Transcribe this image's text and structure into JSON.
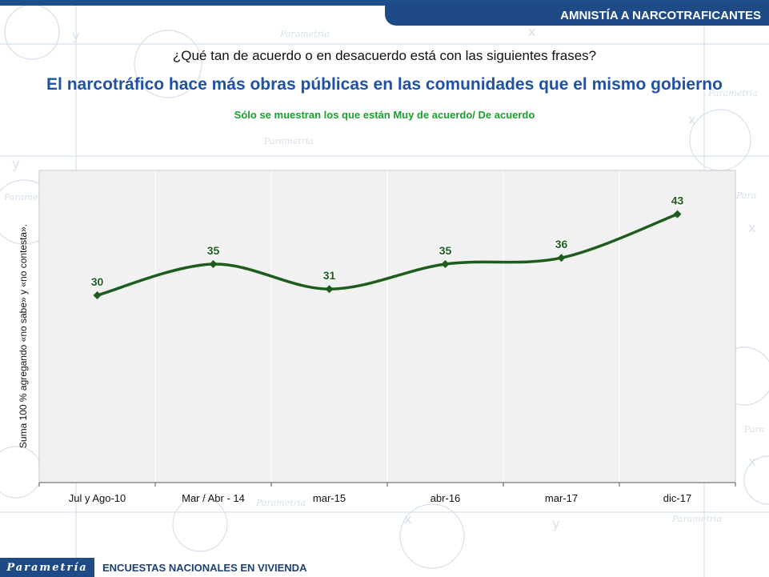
{
  "banner": {
    "title": "AMNISTÍA A NARCOTRAFICANTES"
  },
  "question": "¿Qué tan de acuerdo o en desacuerdo está con las siguientes frases?",
  "statement": "El narcotráfico hace más obras públicas en las comunidades que el mismo gobierno",
  "note": "Sólo se muestran los que están Muy de acuerdo/ De acuerdo",
  "footer": {
    "logo": "Parametría",
    "text": "ENCUESTAS NACIONALES EN VIVIENDA"
  },
  "colors": {
    "line": "#1e5c1e",
    "banner": "#1e4b85",
    "headline": "#1e52a8",
    "note": "#19a12e"
  },
  "chart_data": {
    "type": "line",
    "categories": [
      "Jul y Ago-10",
      "Mar / Abr - 14",
      "mar-15",
      "abr-16",
      "mar-17",
      "dic-17"
    ],
    "series": [
      {
        "values": [
          30,
          35,
          31,
          35,
          36,
          43
        ]
      }
    ],
    "ylabel": "Suma 100 % agregando «no sabe» y «no contesta».",
    "ylim": [
      0,
      50
    ],
    "grid": false,
    "legend": "none"
  }
}
